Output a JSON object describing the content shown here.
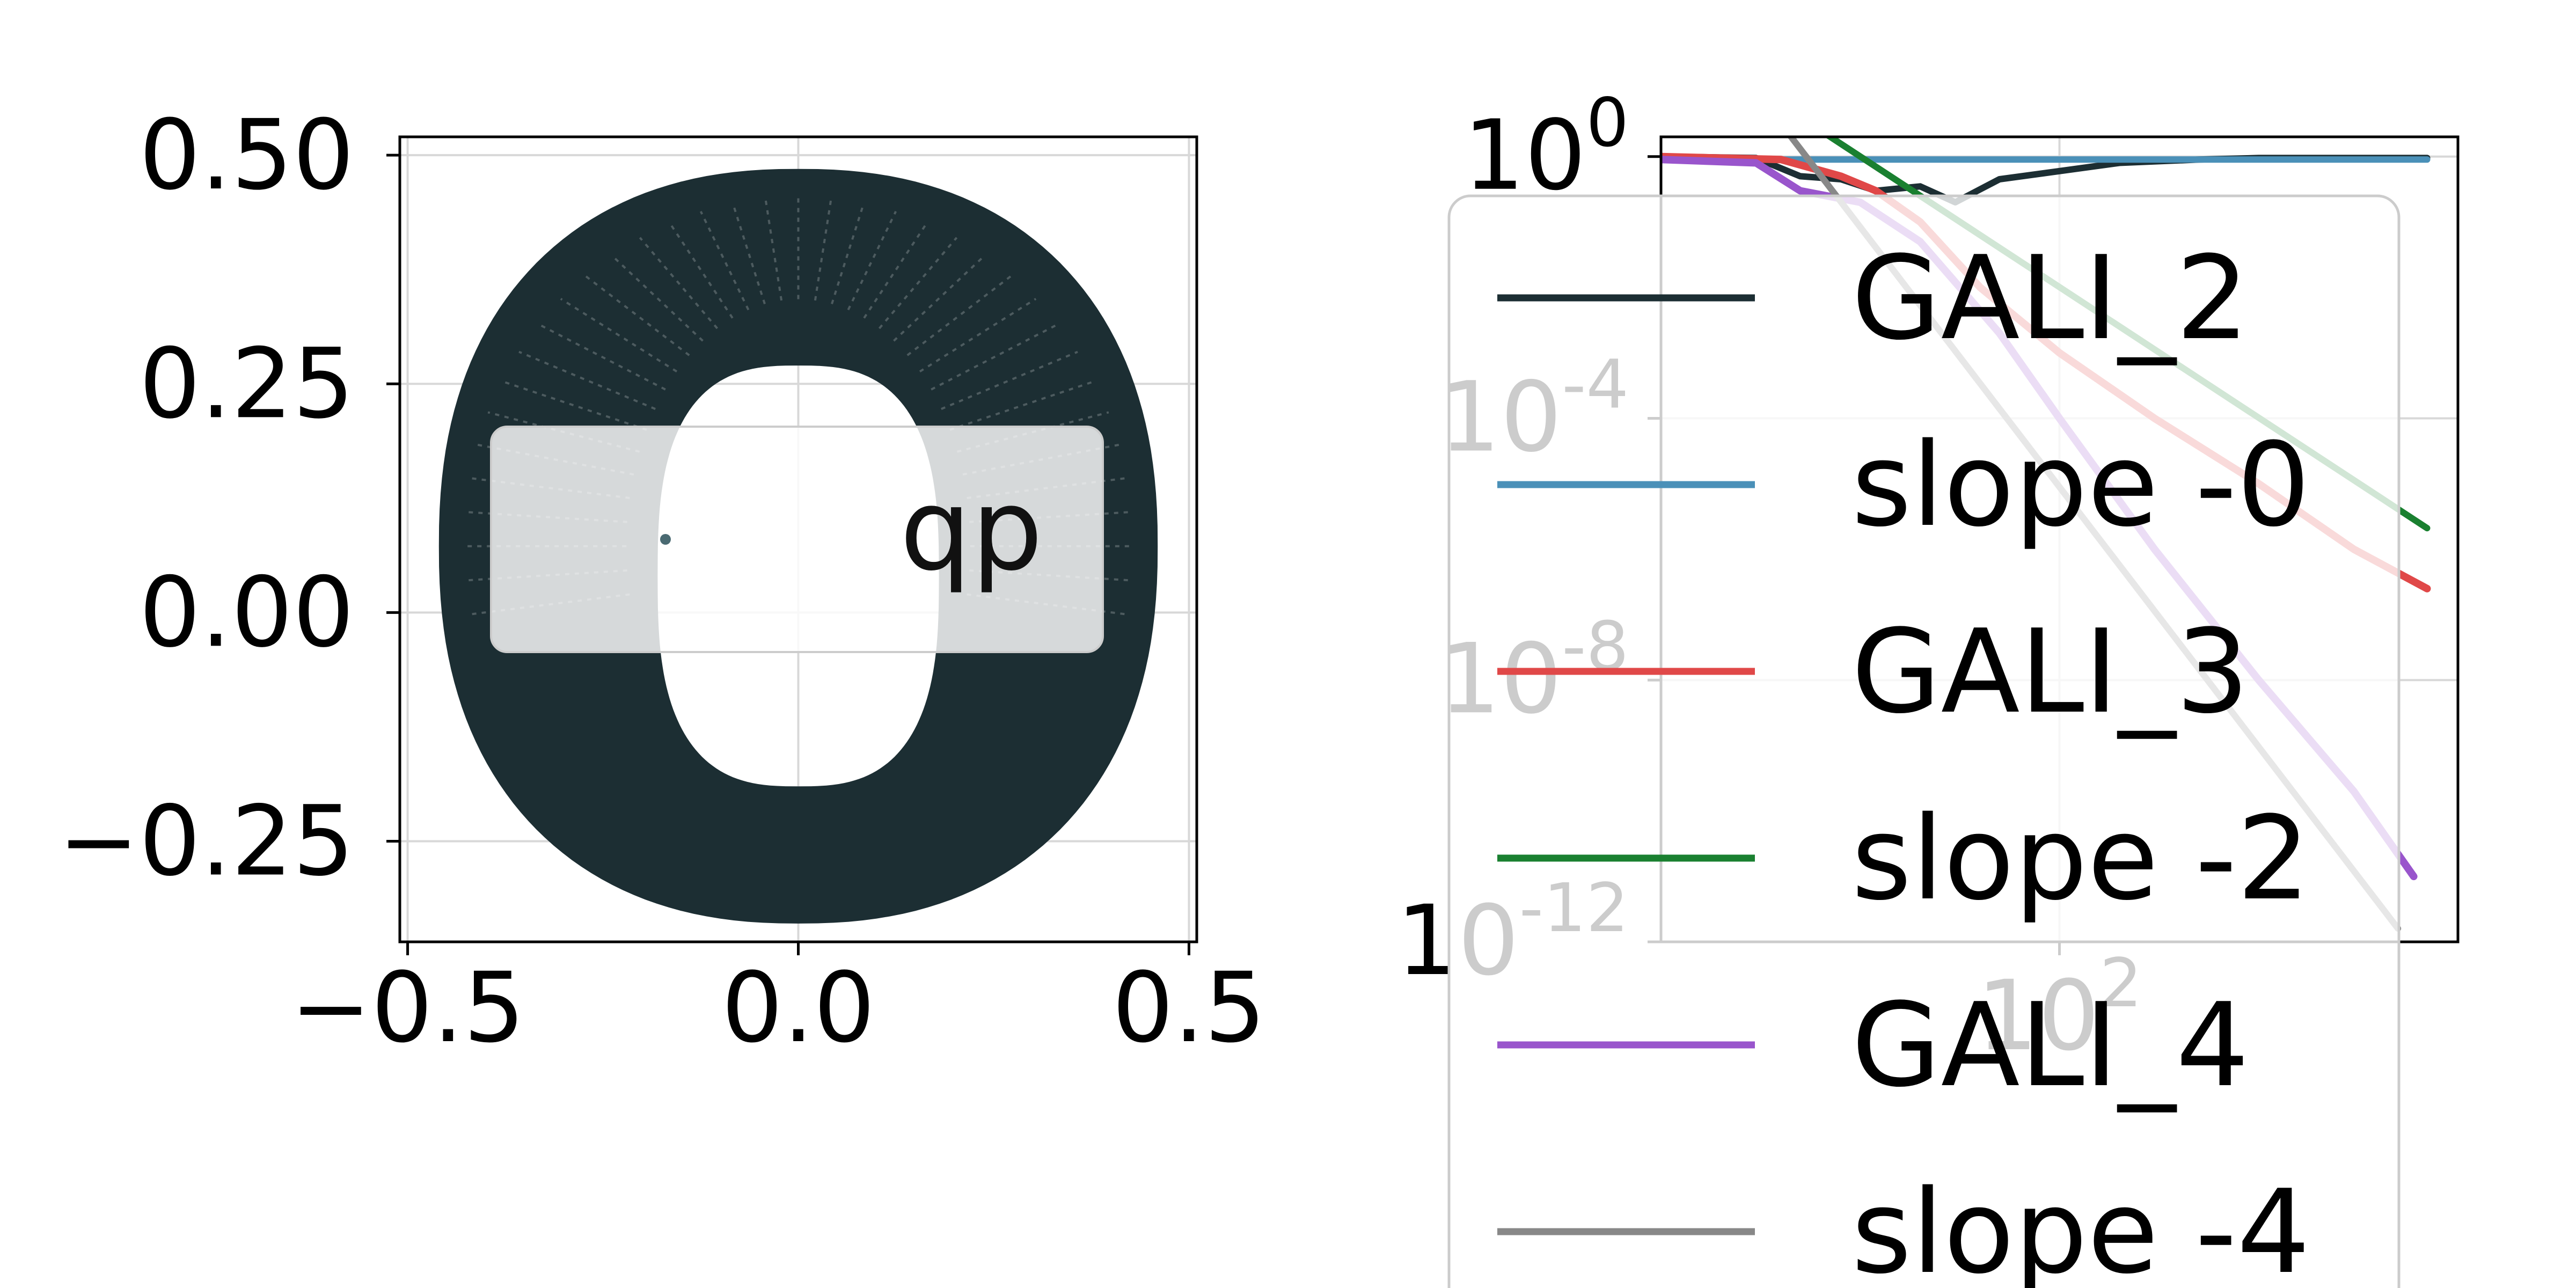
{
  "chart_data": [
    {
      "type": "scatter",
      "title": "",
      "xlabel": "",
      "ylabel": "",
      "xlim": [
        -0.51,
        0.51
      ],
      "ylim": [
        -0.36,
        0.52
      ],
      "xticks": [
        -0.5,
        0.0,
        0.5
      ],
      "xtick_labels": [
        "−0.5",
        "0.0",
        "0.5"
      ],
      "yticks": [
        -0.25,
        0.0,
        0.25,
        0.5
      ],
      "ytick_labels": [
        "−0.25",
        "0.00",
        "0.25",
        "0.50"
      ],
      "grid": true,
      "series": [
        {
          "color": "#1c2e33",
          "shape": "closed orbit annulus (quasi-periodic torus projection)",
          "outer_boundary": {
            "x_center": 0.0,
            "y_top": 0.485,
            "y_bottom": -0.34,
            "x_half_width": 0.46
          },
          "inner_boundary": {
            "x_center": 0.0,
            "y_top": 0.27,
            "y_bottom": -0.19,
            "x_half_width": 0.18
          }
        }
      ],
      "annotation": {
        "text": "qp",
        "position": "upper-right of center",
        "marker": {
          "x": -0.17,
          "y": 0.08
        }
      }
    },
    {
      "type": "line",
      "title": "",
      "xlabel": "",
      "ylabel": "",
      "xscale": "log",
      "yscale": "log",
      "xlim": [
        1,
        10000
      ],
      "ylim": [
        1e-12,
        2
      ],
      "yticks": [
        1,
        0.0001,
        1e-08,
        1e-12
      ],
      "ytick_labels": [
        {
          "base": "10",
          "exp": "0"
        },
        {
          "base": "10",
          "exp": "-4"
        },
        {
          "base": "10",
          "exp": "-8"
        },
        {
          "base": "10",
          "exp": "-12"
        }
      ],
      "xticks": [
        100
      ],
      "xtick_labels": [
        {
          "base": "10",
          "exp": "2"
        }
      ],
      "grid": true,
      "legend_position": "upper-right, overflowing below the axes",
      "series": [
        {
          "name": "GALI_2",
          "color": "#1c2e33",
          "x": [
            1,
            3,
            5,
            8,
            12,
            20,
            30,
            50,
            100,
            200,
            500,
            1000,
            3000,
            7000
          ],
          "y": [
            1.0,
            0.95,
            0.5,
            0.45,
            0.3,
            0.35,
            0.2,
            0.45,
            0.6,
            0.8,
            0.9,
            0.95,
            0.95,
            0.95
          ]
        },
        {
          "name": "slope -0",
          "color": "#4a90b8",
          "x": [
            1,
            7000
          ],
          "y": [
            0.9,
            0.9
          ]
        },
        {
          "name": "GALI_3",
          "color": "#e04848",
          "x": [
            1,
            4,
            8,
            12,
            20,
            40,
            100,
            300,
            1000,
            3000,
            7000
          ],
          "y": [
            1.0,
            0.9,
            0.5,
            0.3,
            0.1,
            0.01,
            0.001,
            0.0001,
            1e-05,
            1e-06,
            2.5e-07
          ]
        },
        {
          "name": "slope -2",
          "color": "#1a8030",
          "x": [
            5,
            7000
          ],
          "y": [
            4.0,
            2.1e-06
          ]
        },
        {
          "name": "GALI_4",
          "color": "#9955cc",
          "x": [
            1,
            3,
            5,
            10,
            20,
            50,
            100,
            300,
            1000,
            3000,
            6000
          ],
          "y": [
            0.9,
            0.8,
            0.3,
            0.2,
            0.05,
            0.002,
            0.0001,
            1e-06,
            1e-08,
            2e-10,
            1e-11
          ]
        },
        {
          "name": "slope -4",
          "color": "#888888",
          "x": [
            3,
            5000
          ],
          "y": [
            10.0,
            1.6e-12
          ]
        }
      ]
    }
  ]
}
